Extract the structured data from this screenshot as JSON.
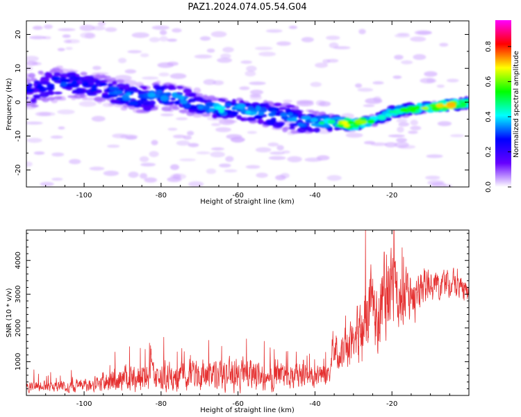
{
  "title": "PAZ1.2024.074.05.54.G04",
  "colors": {
    "snr_line": "#e53030",
    "axis": "#000000",
    "background": "#ffffff"
  },
  "chart_data": [
    {
      "type": "heatmap",
      "xlabel": "Height of straight line (km)",
      "ylabel": "Frequency (Hz)",
      "xlim": [
        -115,
        0
      ],
      "ylim": [
        -25,
        24
      ],
      "x_ticks": [
        -100,
        -80,
        -60,
        -40,
        -20
      ],
      "x_tick_labels": [
        "-100",
        "-80",
        "-60",
        "-40",
        "-20"
      ],
      "y_ticks": [
        20,
        10,
        0,
        -10,
        -20
      ],
      "y_tick_labels": [
        "20",
        "10",
        "0",
        "-10",
        "-20"
      ],
      "colorbar": {
        "label": "Normalized spectral amplitude",
        "range": [
          0,
          0.95
        ],
        "ticks": [
          0.0,
          0.2,
          0.4,
          0.6,
          0.8
        ],
        "tick_labels": [
          "0.0",
          "0.2",
          "0.4",
          "0.6",
          "0.8"
        ],
        "colormap": [
          "#ffffff",
          "#6600ff",
          "#0000ff",
          "#00ffff",
          "#00ff00",
          "#ffff00",
          "#ff0000",
          "#ff00ff"
        ]
      },
      "ridge": {
        "x": [
          -115,
          -105,
          -100,
          -95,
          -90,
          -85,
          -80,
          -75,
          -70,
          -65,
          -60,
          -55,
          -50,
          -45,
          -40,
          -35,
          -30,
          -25,
          -20,
          -15,
          -10,
          -5,
          0
        ],
        "y": [
          3,
          6,
          5,
          4,
          2,
          1,
          2,
          1,
          -1,
          -2,
          -2,
          -3,
          -4,
          -5,
          -6,
          -6,
          -6.5,
          -5.5,
          -3,
          -2,
          -1.5,
          -1,
          0
        ],
        "amplitude": [
          0.25,
          0.3,
          0.25,
          0.3,
          0.35,
          0.35,
          0.35,
          0.35,
          0.35,
          0.4,
          0.4,
          0.4,
          0.35,
          0.35,
          0.4,
          0.5,
          0.85,
          0.45,
          0.5,
          0.55,
          0.6,
          0.8,
          0.45
        ],
        "spread_hz": [
          5,
          5,
          4,
          4,
          4,
          4,
          4,
          4,
          3,
          3,
          3,
          3,
          4,
          4,
          3,
          2,
          1.5,
          1.5,
          1.5,
          1.5,
          1.5,
          1.5,
          1.5
        ]
      }
    },
    {
      "type": "line",
      "xlabel": "Height of straight line (km)",
      "ylabel": "SNR (10 * v/v)",
      "xlim": [
        -115,
        0
      ],
      "ylim": [
        0,
        4900
      ],
      "x_ticks": [
        -100,
        -80,
        -60,
        -40,
        -20
      ],
      "x_tick_labels": [
        "-100",
        "-80",
        "-60",
        "-40",
        "-20"
      ],
      "y_ticks": [
        1000,
        2000,
        3000,
        4000
      ],
      "y_tick_labels": [
        "1000",
        "2000",
        "3000",
        "4000"
      ],
      "series": [
        {
          "x": [
            -115,
            -110,
            -105,
            -100,
            -95,
            -90,
            -85,
            -80,
            -75,
            -70,
            -65,
            -60,
            -55,
            -50,
            -45,
            -40,
            -36,
            -35,
            -33,
            -31,
            -29,
            -27,
            -25,
            -23,
            -21,
            -19.5,
            -18,
            -16,
            -14,
            -12,
            -10,
            -8,
            -6,
            -4,
            -2,
            0
          ],
          "y": [
            280,
            260,
            270,
            300,
            400,
            480,
            560,
            540,
            600,
            620,
            600,
            650,
            620,
            640,
            600,
            580,
            560,
            1500,
            1300,
            1500,
            1800,
            2200,
            2900,
            2300,
            3100,
            3400,
            2700,
            3000,
            2800,
            3100,
            3300,
            3200,
            3400,
            3300,
            3200,
            3100
          ],
          "amplitude": [
            220,
            220,
            230,
            280,
            400,
            500,
            600,
            600,
            650,
            650,
            650,
            650,
            650,
            600,
            550,
            480,
            440,
            700,
            800,
            900,
            1200,
            1500,
            1700,
            1800,
            1800,
            1500,
            1200,
            1000,
            900,
            800,
            700,
            650,
            600,
            550,
            500,
            450
          ],
          "peaks": [
            {
              "x": -83,
              "y": 1550
            },
            {
              "x": -74,
              "y": 1300
            },
            {
              "x": -43,
              "y": 1050
            },
            {
              "x": -29,
              "y": 2650
            },
            {
              "x": -25,
              "y": 3450
            },
            {
              "x": -22,
              "y": 4250
            },
            {
              "x": -19.5,
              "y": 4900
            },
            {
              "x": -17,
              "y": 4100
            },
            {
              "x": -3,
              "y": 3750
            }
          ]
        }
      ]
    }
  ]
}
